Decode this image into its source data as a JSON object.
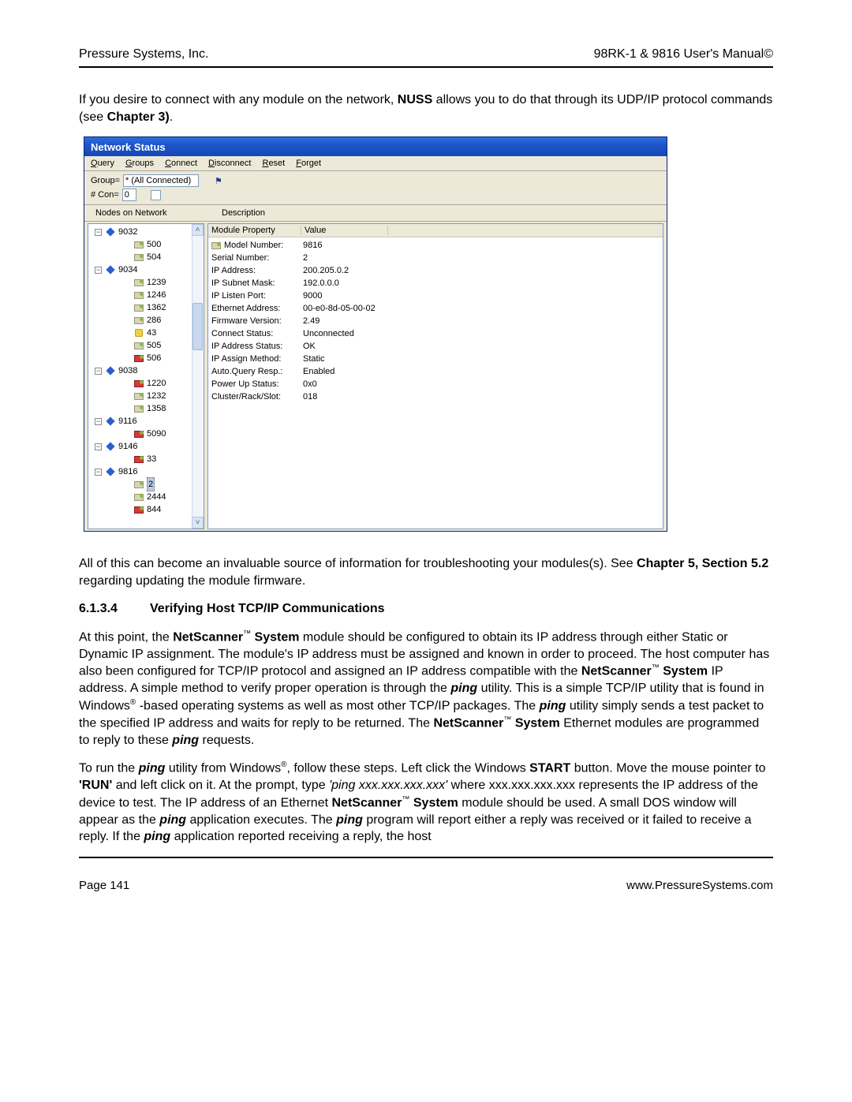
{
  "header": {
    "left": "Pressure Systems, Inc.",
    "right": "98RK-1 & 9816 User's Manual©"
  },
  "intro1a": "If you desire to connect with any module on the network, ",
  "intro1b": "NUSS",
  "intro1c": " allows you to do that through its UDP/IP protocol commands (see ",
  "intro1d": "Chapter 3)",
  "intro1e": ".",
  "window": {
    "title": "Network Status",
    "menu": {
      "q": "Q",
      "query": "uery",
      "g": "G",
      "groups": "roups",
      "c": "C",
      "connect": "onnect",
      "d": "D",
      "disconnect": "isconnect",
      "r": "R",
      "reset": "eset",
      "f": "F",
      "forget": "orget"
    },
    "toolbar": {
      "group_label": "Group=",
      "group_value": "* (All Connected)",
      "con_label": "# Con=",
      "con_value": "0",
      "flag": "⚑"
    },
    "cols": {
      "nodes": "Nodes on Network",
      "desc": "Description"
    },
    "prop_head": {
      "p": "Module Property",
      "v": "Value"
    },
    "props": [
      {
        "k": "Model Number:",
        "v": "9816",
        "icon": true
      },
      {
        "k": "Serial Number:",
        "v": "2"
      },
      {
        "k": "IP Address:",
        "v": "200.205.0.2"
      },
      {
        "k": "IP Subnet Mask:",
        "v": "192.0.0.0"
      },
      {
        "k": "IP Listen Port:",
        "v": "9000"
      },
      {
        "k": "Ethernet Address:",
        "v": "00-e0-8d-05-00-02"
      },
      {
        "k": "Firmware Version:",
        "v": "2.49"
      },
      {
        "k": "Connect Status:",
        "v": "Unconnected"
      },
      {
        "k": "IP Address Status:",
        "v": "OK"
      },
      {
        "k": "IP Assign Method:",
        "v": "Static"
      },
      {
        "k": "Auto.Query Resp.:",
        "v": "Enabled"
      },
      {
        "k": "Power Up Status:",
        "v": "0x0"
      },
      {
        "k": "Cluster/Rack/Slot:",
        "v": "018"
      }
    ],
    "tree": [
      {
        "ind": 0,
        "tg": "-",
        "ic": "diamond",
        "lbl": "9032"
      },
      {
        "ind": 2,
        "ic": "gray",
        "lbl": "500"
      },
      {
        "ind": 2,
        "ic": "gray",
        "lbl": "504"
      },
      {
        "ind": 0,
        "tg": "-",
        "ic": "diamond",
        "lbl": "9034"
      },
      {
        "ind": 2,
        "ic": "gray",
        "lbl": "1239"
      },
      {
        "ind": 2,
        "ic": "gray",
        "lbl": "1246"
      },
      {
        "ind": 2,
        "ic": "gray",
        "lbl": "1362"
      },
      {
        "ind": 2,
        "ic": "gray",
        "lbl": "286"
      },
      {
        "ind": 2,
        "ic": "yel",
        "lbl": "43"
      },
      {
        "ind": 2,
        "ic": "gray",
        "lbl": "505"
      },
      {
        "ind": 2,
        "ic": "red",
        "lbl": "506"
      },
      {
        "ind": 0,
        "tg": "-",
        "ic": "diamond",
        "lbl": "9038"
      },
      {
        "ind": 2,
        "ic": "red",
        "lbl": "1220"
      },
      {
        "ind": 2,
        "ic": "gray",
        "lbl": "1232"
      },
      {
        "ind": 2,
        "ic": "gray",
        "lbl": "1358"
      },
      {
        "ind": 0,
        "tg": "-",
        "ic": "diamond",
        "lbl": "9116"
      },
      {
        "ind": 2,
        "ic": "red",
        "lbl": "5090"
      },
      {
        "ind": 0,
        "tg": "-",
        "ic": "diamond",
        "lbl": "9146"
      },
      {
        "ind": 2,
        "ic": "red",
        "lbl": "33"
      },
      {
        "ind": 0,
        "tg": "-",
        "ic": "diamond",
        "lbl": "9816"
      },
      {
        "ind": 2,
        "ic": "gray",
        "lbl": "2",
        "sel": true
      },
      {
        "ind": 2,
        "ic": "gray",
        "lbl": "2444"
      },
      {
        "ind": 2,
        "ic": "red",
        "lbl": "844"
      }
    ]
  },
  "para2a": "All of this can become an invaluable source of information for troubleshooting your modules(s).  See ",
  "para2b": "Chapter 5, Section 5.2",
  "para2c": " regarding updating the module firmware.",
  "sec_num": "6.1.3.4",
  "sec_title": "Verifying Host TCP/IP Communications",
  "p3_1": "At this point, the ",
  "p3_2": "NetScanner",
  "p3_3": " System",
  "p3_4": " module should be configured to obtain its IP address through either Static or Dynamic IP assignment.  The module's IP address must be assigned and known in order to proceed.  The host computer has also been configured for TCP/IP protocol and assigned an IP address compatible with the ",
  "p3_5": "NetScanner",
  "p3_6": " System",
  "p3_7": " IP address.  A simple method to verify proper operation is through the  ",
  "p3_8": "ping",
  "p3_9": " utility.  This is a simple TCP/IP utility that is found in Windows",
  "p3_10": " -based operating systems as well as most other TCP/IP packages.  The ",
  "p3_11": "ping",
  "p3_12": " utility simply sends a test packet to the specified IP address and waits for reply to be returned.  The ",
  "p3_13": "NetScanner",
  "p3_14": " System",
  "p3_15": " Ethernet modules are programmed to reply to these ",
  "p3_16": "ping",
  "p3_17": " requests.",
  "p4_1": "To run the ",
  "p4_2": "ping",
  "p4_3": " utility from Windows",
  "p4_4": ", follow these steps.  Left click the Windows ",
  "p4_5": "START",
  "p4_6": " button. Move the mouse pointer to ",
  "p4_7": "'RUN'",
  "p4_8": " and left click on it.  At the prompt, type ",
  "p4_9": "'ping xxx.xxx.xxx.xxx'",
  "p4_10": " where xxx.xxx.xxx.xxx represents the IP address of the device to test. The IP address of an Ethernet ",
  "p4_11": "NetScanner",
  "p4_12": " System",
  "p4_13": " module should be used.  A small DOS window will appear as the ",
  "p4_14": "ping",
  "p4_15": " application executes.  The ",
  "p4_16": "ping",
  "p4_17": " program will report either a reply was received or it failed to receive a reply. If the ",
  "p4_18": "ping",
  "p4_19": " application reported receiving a reply, the host",
  "footer": {
    "left": "Page 141",
    "right": "www.PressureSystems.com"
  },
  "tm": "™",
  "reg": "®"
}
